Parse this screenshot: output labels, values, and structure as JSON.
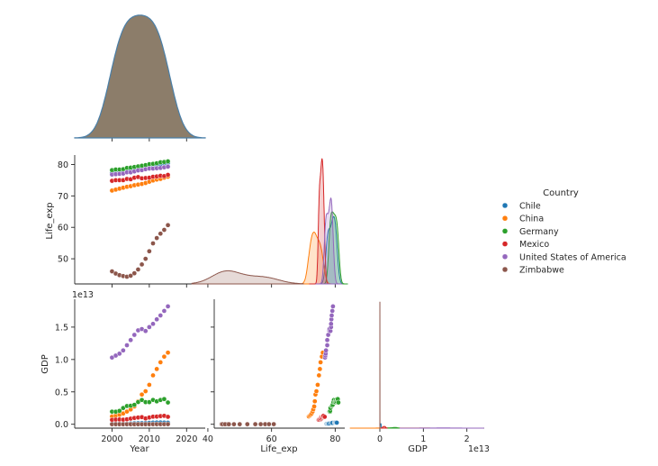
{
  "chart_data": {
    "type": "scatter",
    "variables": [
      "Year",
      "Life_exp",
      "GDP"
    ],
    "legend": {
      "title": "Country",
      "placement": "right",
      "entries": [
        "Chile",
        "China",
        "Germany",
        "Mexico",
        "United States of America",
        "Zimbabwe"
      ]
    },
    "colors": {
      "Chile": "#1f77b4",
      "China": "#ff7f0e",
      "Germany": "#2ca02c",
      "Mexico": "#d62728",
      "United States of America": "#9467bd",
      "Zimbabwe": "#8c564b",
      "Year_kde_fill": "#8c7d6a",
      "Year_kde_line": "#4a7fa8"
    },
    "axes": {
      "Year": {
        "label": "Year",
        "ticks": [
          "2000",
          "2010",
          "2020"
        ],
        "lim": [
          1990,
          2025
        ]
      },
      "Life_exp": {
        "label": "Life_exp",
        "ticks_y": [
          "50",
          "60",
          "70",
          "80"
        ],
        "ticks_x": [
          "40",
          "60",
          "80"
        ],
        "lim": [
          42,
          83
        ]
      },
      "GDP": {
        "label": "GDP",
        "ticks_y": [
          "0.0",
          "0.5",
          "1.0",
          "1.5"
        ],
        "ticks_x": [
          "0",
          "1",
          "2"
        ],
        "offset_text": "1e13",
        "lim_y": [
          -0.06,
          1.93
        ],
        "lim_x": [
          -0.6,
          2.4
        ]
      }
    },
    "grid": false,
    "corner": true,
    "series": [
      {
        "name": "Chile",
        "year": [
          2000,
          2001,
          2002,
          2003,
          2004,
          2005,
          2006,
          2007,
          2008,
          2009,
          2010,
          2011,
          2012,
          2013,
          2014,
          2015
        ],
        "life_exp": [
          77.3,
          77.5,
          77.7,
          77.8,
          78.0,
          78.4,
          78.9,
          78.9,
          79.6,
          79.3,
          79.1,
          79.8,
          79.9,
          80.1,
          80.3,
          80.5
        ],
        "gdp": [
          0.0078,
          0.0071,
          0.007,
          0.0075,
          0.01,
          0.0123,
          0.0155,
          0.0173,
          0.018,
          0.0173,
          0.0218,
          0.0252,
          0.0267,
          0.0278,
          0.026,
          0.0243
        ]
      },
      {
        "name": "China",
        "year": [
          2000,
          2001,
          2002,
          2003,
          2004,
          2005,
          2006,
          2007,
          2008,
          2009,
          2010,
          2011,
          2012,
          2013,
          2014,
          2015
        ],
        "life_exp": [
          71.7,
          72.0,
          72.3,
          72.6,
          72.9,
          73.1,
          73.4,
          73.6,
          73.8,
          74.1,
          74.5,
          74.9,
          75.2,
          75.4,
          75.8,
          76.1
        ],
        "gdp": [
          0.121,
          0.134,
          0.147,
          0.166,
          0.196,
          0.229,
          0.275,
          0.355,
          0.459,
          0.51,
          0.609,
          0.755,
          0.853,
          0.957,
          1.044,
          1.106
        ]
      },
      {
        "name": "Germany",
        "year": [
          2000,
          2001,
          2002,
          2003,
          2004,
          2005,
          2006,
          2007,
          2008,
          2009,
          2010,
          2011,
          2012,
          2013,
          2014,
          2015
        ],
        "life_exp": [
          78.2,
          78.4,
          78.4,
          78.5,
          78.9,
          79.0,
          79.2,
          79.4,
          79.6,
          79.8,
          80.1,
          80.2,
          80.4,
          80.7,
          80.8,
          81.0
        ],
        "gdp": [
          0.195,
          0.194,
          0.207,
          0.251,
          0.282,
          0.286,
          0.3,
          0.343,
          0.375,
          0.342,
          0.342,
          0.376,
          0.354,
          0.375,
          0.389,
          0.336
        ]
      },
      {
        "name": "Mexico",
        "year": [
          2000,
          2001,
          2002,
          2003,
          2004,
          2005,
          2006,
          2007,
          2008,
          2009,
          2010,
          2011,
          2012,
          2013,
          2014,
          2015
        ],
        "life_exp": [
          74.8,
          75.0,
          75.0,
          75.0,
          75.4,
          75.3,
          75.8,
          76.0,
          75.6,
          75.7,
          75.8,
          76.1,
          76.2,
          76.4,
          76.3,
          76.7
        ],
        "gdp": [
          0.068,
          0.072,
          0.074,
          0.071,
          0.077,
          0.087,
          0.097,
          0.104,
          0.11,
          0.09,
          0.105,
          0.117,
          0.119,
          0.126,
          0.13,
          0.115
        ]
      },
      {
        "name": "United States of America",
        "year": [
          2000,
          2001,
          2002,
          2003,
          2004,
          2005,
          2006,
          2007,
          2008,
          2009,
          2010,
          2011,
          2012,
          2013,
          2014,
          2015
        ],
        "life_exp": [
          76.8,
          76.9,
          77.0,
          77.1,
          77.5,
          77.5,
          77.8,
          78.1,
          78.2,
          78.5,
          78.7,
          78.7,
          78.8,
          78.9,
          79.1,
          79.3
        ],
        "gdp": [
          1.03,
          1.06,
          1.09,
          1.14,
          1.22,
          1.3,
          1.38,
          1.45,
          1.47,
          1.44,
          1.5,
          1.55,
          1.62,
          1.68,
          1.75,
          1.82
        ]
      },
      {
        "name": "Zimbabwe",
        "year": [
          2000,
          2001,
          2002,
          2003,
          2004,
          2005,
          2006,
          2007,
          2008,
          2009,
          2010,
          2011,
          2012,
          2013,
          2014,
          2015
        ],
        "life_exp": [
          46.0,
          45.3,
          44.8,
          44.5,
          44.3,
          44.6,
          45.4,
          46.6,
          48.2,
          50.0,
          52.4,
          54.9,
          56.6,
          58.0,
          59.2,
          60.7
        ],
        "gdp": [
          0.00068,
          0.00068,
          0.00063,
          0.00057,
          0.00056,
          0.00058,
          0.00054,
          0.00053,
          0.00044,
          0.00083,
          0.00105,
          0.00124,
          0.00126,
          0.00138,
          0.00142,
          0.00154
        ]
      }
    ]
  }
}
